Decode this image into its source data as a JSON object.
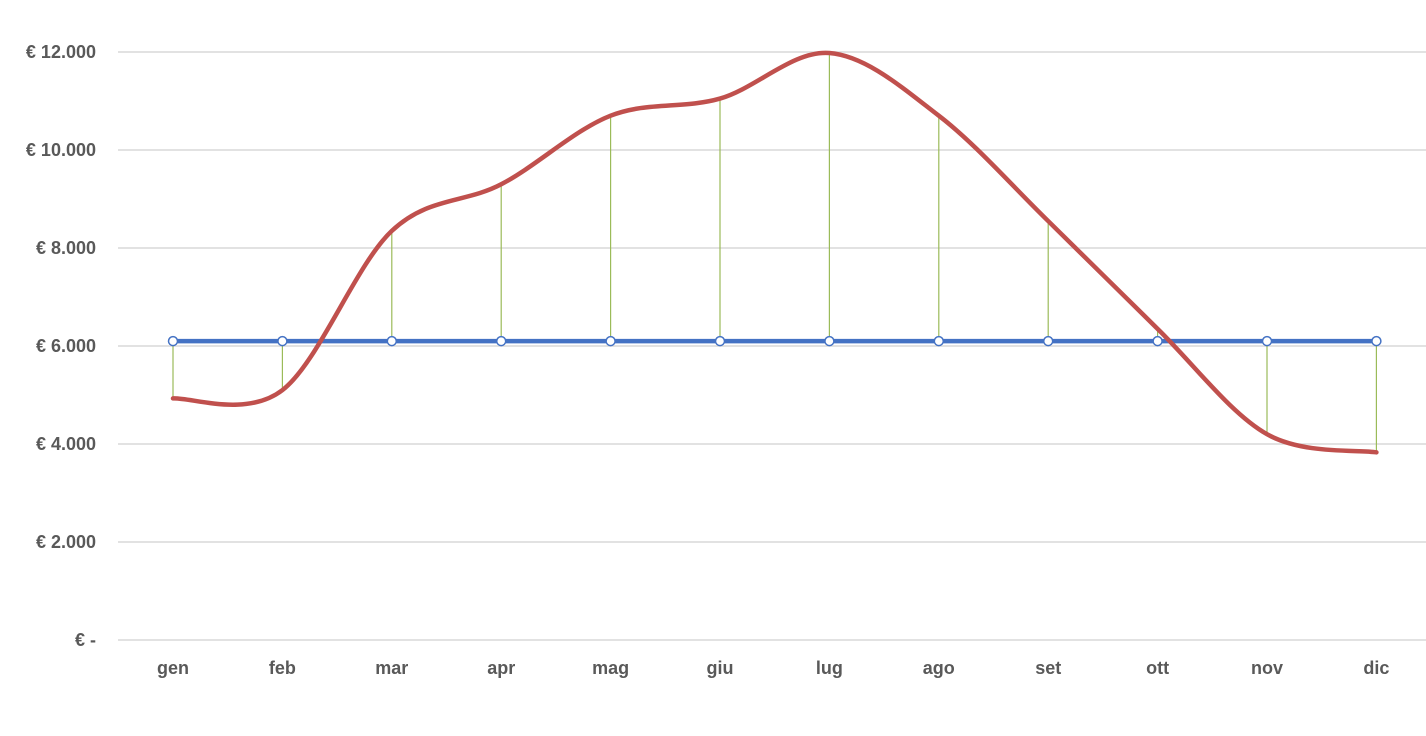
{
  "chart_data": {
    "type": "line",
    "categories": [
      "gen",
      "feb",
      "mar",
      "apr",
      "mag",
      "giu",
      "lug",
      "ago",
      "set",
      "ott",
      "nov",
      "dic"
    ],
    "y_ticks": [
      0,
      2000,
      4000,
      6000,
      8000,
      10000,
      12000
    ],
    "y_tick_labels": [
      "€ -",
      "€ 2.000",
      "€ 4.000",
      "€ 6.000",
      "€ 8.000",
      "€ 10.000",
      "€ 12.000"
    ],
    "ylim": [
      0,
      12000
    ],
    "grid": true,
    "legend": "none",
    "series": [
      {
        "values": [
          6100,
          6100,
          6100,
          6100,
          6100,
          6100,
          6100,
          6100,
          6100,
          6100,
          6100,
          6100
        ],
        "color": "#4472C4",
        "smooth": false,
        "markers": "circle"
      },
      {
        "values": [
          4930,
          5100,
          8350,
          9300,
          10700,
          11050,
          11980,
          10700,
          8550,
          6350,
          4200,
          3830
        ],
        "color": "#C0504D",
        "smooth": true,
        "markers": "none"
      }
    ],
    "drop_lines": {
      "color": "#9BBB59"
    },
    "colors": {
      "gridline": "#D9D9D9",
      "label": "#595959"
    }
  }
}
